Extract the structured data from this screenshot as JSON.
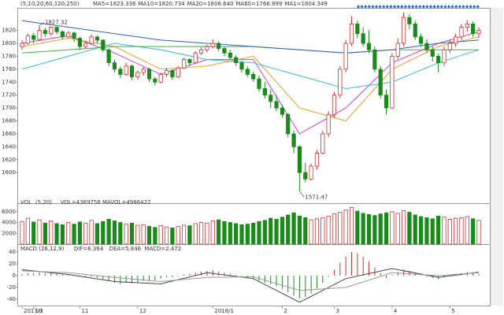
{
  "chart_data": [
    {
      "type": "candlestick",
      "params": "(5,10,20,60,120,250)",
      "up_color": "#d03030",
      "down_color": "#1a8a1a",
      "ylim": [
        1560,
        1850
      ],
      "yticks": [
        1600,
        1620,
        1640,
        1660,
        1680,
        1700,
        1720,
        1740,
        1760,
        1780,
        1800,
        1820
      ],
      "categories": [
        "2017/3",
        null,
        "10",
        null,
        null,
        null,
        null,
        null,
        null,
        null,
        "11",
        null,
        null,
        null,
        null,
        null,
        null,
        null,
        null,
        null,
        "12",
        null,
        null,
        null,
        null,
        null,
        null,
        null,
        null,
        null,
        null,
        null,
        null,
        "2018/1",
        null,
        null,
        null,
        null,
        null,
        null,
        null,
        null,
        null,
        null,
        null,
        "2",
        null,
        null,
        null,
        null,
        null,
        null,
        null,
        null,
        "3",
        null,
        null,
        null,
        null,
        null,
        null,
        null,
        null,
        null,
        "4",
        null,
        null,
        null,
        null,
        null,
        null,
        null,
        null,
        null,
        "5",
        null,
        null,
        null,
        null,
        null
      ],
      "candles": [
        [
          1795,
          1805,
          1790,
          1800
        ],
        [
          1800,
          1815,
          1798,
          1812
        ],
        [
          1812,
          1816,
          1800,
          1806
        ],
        [
          1806,
          1827.32,
          1804,
          1820
        ],
        [
          1820,
          1824,
          1810,
          1815
        ],
        [
          1815,
          1826,
          1812,
          1825
        ],
        [
          1825,
          1826,
          1814,
          1818
        ],
        [
          1818,
          1820,
          1806,
          1810
        ],
        [
          1810,
          1819,
          1808,
          1816
        ],
        [
          1816,
          1818,
          1802,
          1808
        ],
        [
          1808,
          1810,
          1790,
          1795
        ],
        [
          1795,
          1804,
          1792,
          1800
        ],
        [
          1800,
          1814,
          1798,
          1810
        ],
        [
          1810,
          1812,
          1800,
          1805
        ],
        [
          1805,
          1806,
          1786,
          1790
        ],
        [
          1790,
          1792,
          1765,
          1770
        ],
        [
          1770,
          1775,
          1755,
          1760
        ],
        [
          1760,
          1764,
          1746,
          1752
        ],
        [
          1752,
          1770,
          1750,
          1765
        ],
        [
          1765,
          1767,
          1743,
          1748
        ],
        [
          1748,
          1758,
          1744,
          1755
        ],
        [
          1755,
          1764,
          1750,
          1760
        ],
        [
          1760,
          1762,
          1740,
          1745
        ],
        [
          1745,
          1748,
          1735,
          1740
        ],
        [
          1740,
          1755,
          1738,
          1752
        ],
        [
          1752,
          1762,
          1748,
          1758
        ],
        [
          1758,
          1760,
          1744,
          1748
        ],
        [
          1748,
          1765,
          1746,
          1762
        ],
        [
          1762,
          1778,
          1760,
          1775
        ],
        [
          1775,
          1777,
          1765,
          1770
        ],
        [
          1770,
          1788,
          1768,
          1785
        ],
        [
          1785,
          1794,
          1782,
          1790
        ],
        [
          1790,
          1798,
          1786,
          1795
        ],
        [
          1795,
          1806,
          1792,
          1800
        ],
        [
          1800,
          1803,
          1788,
          1792
        ],
        [
          1792,
          1795,
          1780,
          1785
        ],
        [
          1785,
          1790,
          1774,
          1778
        ],
        [
          1778,
          1782,
          1765,
          1770
        ],
        [
          1770,
          1773,
          1755,
          1760
        ],
        [
          1760,
          1764,
          1748,
          1752
        ],
        [
          1752,
          1756,
          1740,
          1745
        ],
        [
          1745,
          1750,
          1725,
          1730
        ],
        [
          1730,
          1740,
          1715,
          1720
        ],
        [
          1720,
          1728,
          1700,
          1710
        ],
        [
          1710,
          1720,
          1695,
          1700
        ],
        [
          1700,
          1705,
          1685,
          1690
        ],
        [
          1690,
          1692,
          1655,
          1660
        ],
        [
          1660,
          1665,
          1630,
          1640
        ],
        [
          1640,
          1642,
          1571.47,
          1600
        ],
        [
          1600,
          1615,
          1585,
          1590
        ],
        [
          1590,
          1614,
          1588,
          1610
        ],
        [
          1610,
          1635,
          1605,
          1630
        ],
        [
          1630,
          1665,
          1628,
          1660
        ],
        [
          1660,
          1695,
          1655,
          1690
        ],
        [
          1690,
          1725,
          1685,
          1720
        ],
        [
          1720,
          1765,
          1715,
          1760
        ],
        [
          1760,
          1805,
          1755,
          1800
        ],
        [
          1800,
          1842,
          1796,
          1830
        ],
        [
          1830,
          1835,
          1808,
          1815
        ],
        [
          1815,
          1825,
          1795,
          1800
        ],
        [
          1800,
          1820,
          1785,
          1790
        ],
        [
          1790,
          1795,
          1755,
          1760
        ],
        [
          1760,
          1765,
          1715,
          1720
        ],
        [
          1720,
          1728,
          1690,
          1700
        ],
        [
          1700,
          1785,
          1698,
          1780
        ],
        [
          1780,
          1808,
          1775,
          1800
        ],
        [
          1800,
          1848,
          1795,
          1840
        ],
        [
          1840,
          1845,
          1822,
          1830
        ],
        [
          1830,
          1835,
          1805,
          1810
        ],
        [
          1810,
          1815,
          1795,
          1800
        ],
        [
          1800,
          1806,
          1785,
          1790
        ],
        [
          1790,
          1795,
          1772,
          1780
        ],
        [
          1780,
          1784,
          1755,
          1770
        ],
        [
          1770,
          1795,
          1765,
          1790
        ],
        [
          1790,
          1806,
          1785,
          1800
        ],
        [
          1800,
          1815,
          1795,
          1810
        ],
        [
          1810,
          1830,
          1805,
          1825
        ],
        [
          1825,
          1836,
          1818,
          1830
        ],
        [
          1830,
          1834,
          1810,
          1815
        ],
        [
          1815,
          1825,
          1808,
          1820
        ]
      ],
      "series": [
        {
          "name": "MA5=1823.336",
          "color": "#d040d0",
          "x": [
            0,
            8,
            16,
            24,
            32,
            40,
            48,
            56,
            64,
            72,
            79
          ],
          "values": [
            1800,
            1812,
            1785,
            1752,
            1775,
            1775,
            1660,
            1700,
            1770,
            1800,
            1818
          ]
        },
        {
          "name": "MA10=1820.734",
          "color": "#e0a020",
          "x": [
            0,
            8,
            16,
            24,
            32,
            40,
            48,
            56,
            64,
            72,
            79
          ],
          "values": [
            1795,
            1808,
            1795,
            1760,
            1765,
            1780,
            1700,
            1680,
            1760,
            1795,
            1810
          ]
        },
        {
          "name": "MA20=1806.640",
          "color": "#30c0d0",
          "x": [
            0,
            8,
            16,
            24,
            32,
            40,
            48,
            56,
            64,
            72,
            79
          ],
          "values": [
            1760,
            1780,
            1800,
            1790,
            1775,
            1770,
            1750,
            1730,
            1740,
            1770,
            1790
          ]
        },
        {
          "name": "MA60=1766.899",
          "color": "#40b040",
          "x": [
            0,
            8,
            16,
            24,
            32,
            40,
            48,
            56,
            64,
            72,
            79
          ],
          "values": [
            1785,
            1790,
            1795,
            1795,
            1795,
            1795,
            1790,
            1785,
            1790,
            1790,
            1790
          ]
        },
        {
          "name": "MA1=1804.349",
          "color": "#3060c0",
          "x": [
            0,
            8,
            16,
            24,
            32,
            40,
            48,
            56,
            64,
            72,
            79
          ],
          "values": [
            1835,
            1825,
            1815,
            1805,
            1800,
            1795,
            1790,
            1785,
            1790,
            1800,
            1805
          ]
        }
      ],
      "annotations": [
        {
          "text": "1827.32",
          "x": 3,
          "y": 1827.32
        },
        {
          "text": "1571.47",
          "x": 48,
          "y": 1571.47
        }
      ]
    },
    {
      "type": "bar",
      "label": "VOL",
      "params": "(5,20)",
      "readouts": [
        "VOL=4369756",
        "MAVOL=4986422"
      ],
      "ylim": [
        0,
        7000
      ],
      "yticks": [
        2000,
        4000,
        6000
      ],
      "values": [
        4200,
        4800,
        4100,
        4500,
        3900,
        4300,
        3800,
        3600,
        4000,
        3700,
        4100,
        3900,
        4400,
        3800,
        4200,
        4600,
        4300,
        4000,
        3700,
        3900,
        3500,
        3600,
        3300,
        3100,
        3400,
        3200,
        3000,
        3300,
        3500,
        3400,
        3800,
        4000,
        3900,
        4300,
        4500,
        4200,
        4000,
        3800,
        3600,
        3700,
        3900,
        4200,
        4400,
        4800,
        4600,
        5000,
        5400,
        5800,
        5200,
        4900,
        4500,
        4700,
        4900,
        5200,
        5600,
        5900,
        6300,
        6800,
        6100,
        5700,
        5500,
        5300,
        5600,
        5800,
        6000,
        5700,
        6200,
        5900,
        5400,
        5100,
        4900,
        4700,
        5200,
        5000,
        4600,
        4800,
        4900,
        5100,
        4700,
        4400
      ]
    },
    {
      "type": "macd",
      "label": "MACD",
      "params": "(26,12,9)",
      "readout": "MACD=2.472",
      "ylim": [
        -48,
        48
      ],
      "yticks": [
        -40,
        -20,
        0,
        20,
        40
      ],
      "values": [
        3,
        4,
        4,
        5,
        4,
        5,
        3,
        2,
        2,
        1,
        -2,
        -3,
        -2,
        -4,
        -6,
        -9,
        -12,
        -14,
        -12,
        -13,
        -11,
        -9,
        -9,
        -8,
        -5,
        -3,
        -3,
        -1,
        2,
        3,
        5,
        7,
        8,
        9,
        7,
        5,
        3,
        1,
        -2,
        -4,
        -6,
        -9,
        -12,
        -15,
        -18,
        -22,
        -28,
        -34,
        -38,
        -36,
        -30,
        -22,
        -12,
        -2,
        10,
        22,
        32,
        40,
        38,
        32,
        24,
        14,
        4,
        -4,
        2,
        6,
        10,
        8,
        4,
        1,
        -2,
        -4,
        -6,
        -3,
        -1,
        2,
        4,
        6,
        5,
        3
      ],
      "series": [
        {
          "name": "DIF=6.364",
          "color": "#444444",
          "x": [
            0,
            8,
            16,
            24,
            32,
            40,
            48,
            56,
            64,
            72,
            79
          ],
          "values": [
            10,
            2,
            -10,
            -14,
            5,
            -5,
            -45,
            -5,
            12,
            -3,
            6
          ]
        },
        {
          "name": "DEA=5.846",
          "color": "#999999",
          "x": [
            0,
            8,
            16,
            24,
            32,
            40,
            48,
            56,
            64,
            72,
            79
          ],
          "values": [
            8,
            5,
            -3,
            -10,
            -3,
            -2,
            -25,
            -20,
            5,
            0,
            5
          ]
        }
      ]
    }
  ]
}
